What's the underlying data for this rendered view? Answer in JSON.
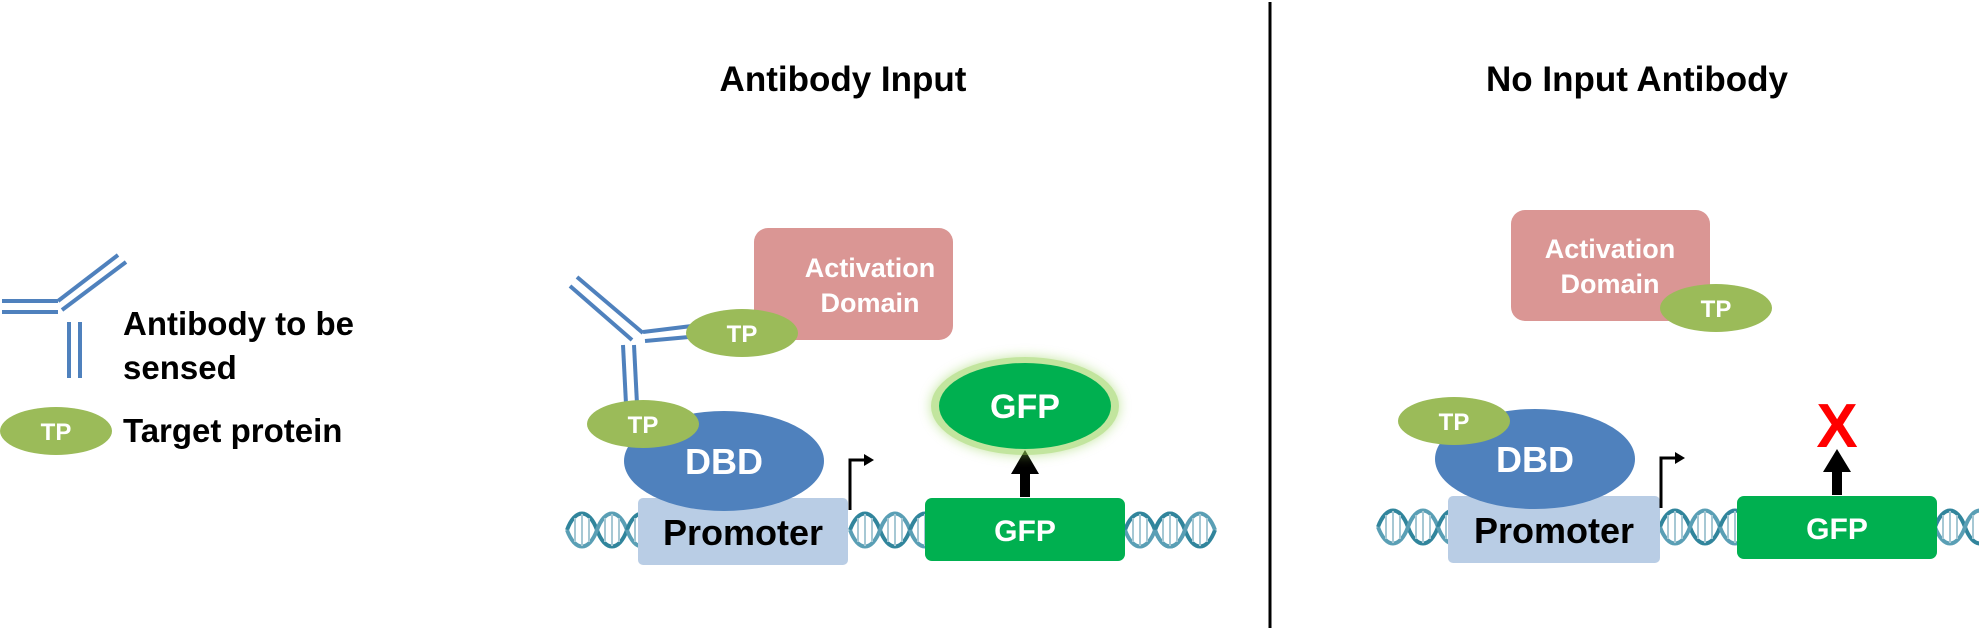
{
  "legend": {
    "antibody_label_line1": "Antibody to be",
    "antibody_label_line2": "sensed",
    "tp_badge": "TP",
    "target_protein_label": "Target protein"
  },
  "panel_antibody_input": {
    "title": "Antibody Input",
    "activation_domain_line1": "Activation",
    "activation_domain_line2": "Domain",
    "tp_on_activation": "TP",
    "tp_on_dbd": "TP",
    "dbd": "DBD",
    "promoter": "Promoter",
    "gfp_protein": "GFP",
    "gfp_gene": "GFP"
  },
  "panel_no_input": {
    "title": "No Input Antibody",
    "activation_domain_line1": "Activation",
    "activation_domain_line2": "Domain",
    "tp_on_activation": "TP",
    "tp_on_dbd": "TP",
    "dbd": "DBD",
    "promoter": "Promoter",
    "blocked_mark": "X",
    "gfp_gene": "GFP"
  },
  "colors": {
    "antibody": "#4f81bd",
    "tp": "#9bbb59",
    "activation_domain": "#da9694",
    "dbd": "#4f81bd",
    "promoter": "#b9cde5",
    "gfp": "#00b050",
    "gfp_glow": "#92d050",
    "blocked": "#ff0000",
    "dna": "#31859c"
  }
}
